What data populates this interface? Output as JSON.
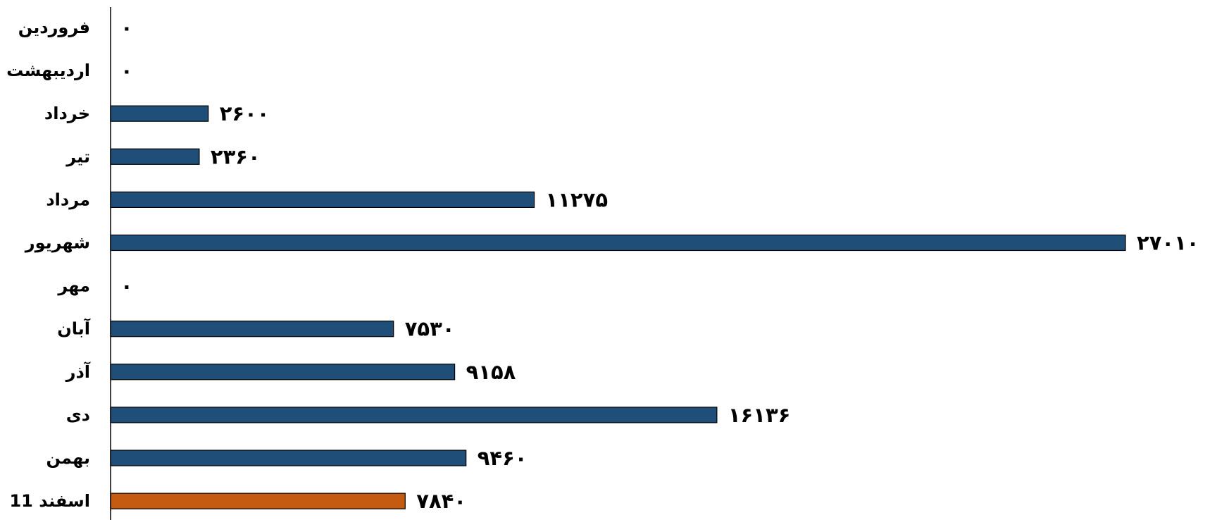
{
  "chart_data": {
    "type": "bar",
    "orientation": "horizontal",
    "categories": [
      "فروردین",
      "اردیبهشت",
      "خرداد",
      "تیر",
      "مرداد",
      "شهریور",
      "مهر",
      "آبان",
      "آذر",
      "دی",
      "بهمن",
      "11 اسفند"
    ],
    "values": [
      0,
      0,
      2600,
      2360,
      11275,
      27010,
      0,
      7530,
      9158,
      16136,
      9460,
      7840
    ],
    "value_labels": [
      "۰",
      "۰",
      "۲۶۰۰",
      "۲۳۶۰",
      "۱۱۲۷۵",
      "۲۷۰۱۰",
      "۰",
      "۷۵۳۰",
      "۹۱۵۸",
      "۱۶۱۳۶",
      "۹۴۶۰",
      "۷۸۴۰"
    ],
    "colors": [
      "#1f4e79",
      "#1f4e79",
      "#1f4e79",
      "#1f4e79",
      "#1f4e79",
      "#1f4e79",
      "#1f4e79",
      "#1f4e79",
      "#1f4e79",
      "#1f4e79",
      "#1f4e79",
      "#c55a11"
    ],
    "xlim": [
      0,
      27010
    ],
    "title": "",
    "xlabel": "",
    "ylabel": "",
    "grid": false,
    "legend": "none"
  }
}
